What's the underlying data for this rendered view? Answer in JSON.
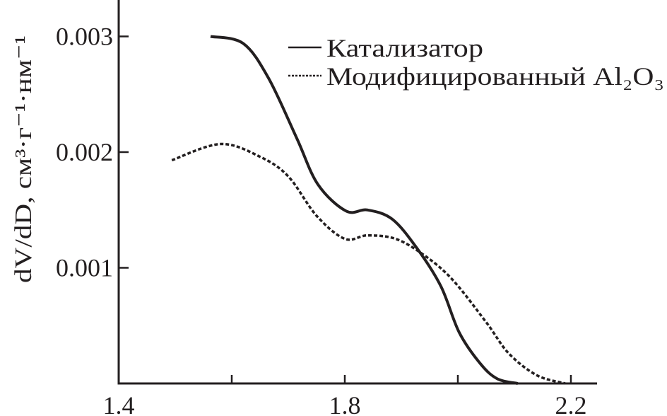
{
  "chart_data": {
    "type": "line",
    "title": "",
    "xlabel": "",
    "ylabel": "dV/dD, см³·г⁻¹·нм⁻¹",
    "xlim": [
      1.4,
      2.25
    ],
    "ylim": [
      0,
      0.0033
    ],
    "x_ticks": [
      1.4,
      1.6,
      1.8,
      2.0,
      2.2
    ],
    "x_tick_labels": [
      "1.4",
      "",
      "1.8",
      "",
      "2.2"
    ],
    "y_ticks": [
      0.001,
      0.002,
      0.003
    ],
    "y_tick_labels": [
      "0.001",
      "0.002",
      "0.003"
    ],
    "grid": false,
    "legend_position": "top-right",
    "series": [
      {
        "name": "Катализатор",
        "style": "solid",
        "color": "#231f20",
        "x": [
          1.5625,
          1.62,
          1.665,
          1.715,
          1.7525,
          1.8025,
          1.84,
          1.884,
          1.9275,
          1.97,
          2.0025,
          2.04,
          2.07,
          2.106
        ],
        "y": [
          0.003,
          0.00294,
          0.00264,
          0.00212,
          0.00172,
          0.00149,
          0.0015,
          0.00142,
          0.00117,
          0.00084,
          0.00044,
          0.00017,
          4e-05,
          0.0
        ]
      },
      {
        "name": "Модифицированный Al₂O₃",
        "style": "dashed",
        "color": "#231f20",
        "x": [
          1.494,
          1.58,
          1.65,
          1.7,
          1.75,
          1.8,
          1.84,
          1.89,
          1.94,
          1.99,
          2.05,
          2.09,
          2.14,
          2.19
        ],
        "y": [
          0.00193,
          0.00207,
          0.00196,
          0.00179,
          0.00145,
          0.00125,
          0.00128,
          0.00125,
          0.00111,
          0.0009,
          0.00053,
          0.00026,
          7e-05,
          0.0
        ]
      }
    ]
  }
}
